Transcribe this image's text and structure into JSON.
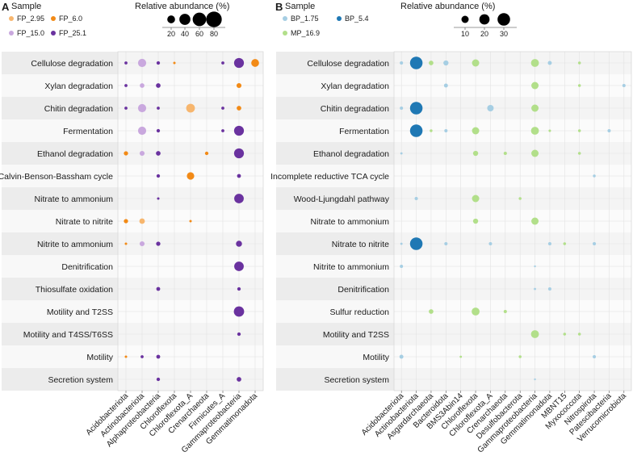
{
  "chart_data": [
    {
      "panel": "A",
      "type": "dot-matrix",
      "legend": {
        "sample_title": "Sample",
        "size_title": "Relative abundance (%)",
        "samples": [
          {
            "name": "FP_2.95",
            "color": "#f7b66e"
          },
          {
            "name": "FP_6.0",
            "color": "#f28a16"
          },
          {
            "name": "FP_15.0",
            "color": "#c9a8de"
          },
          {
            "name": "FP_25.1",
            "color": "#6a329f"
          }
        ],
        "size_ticks": [
          20,
          40,
          60,
          80
        ]
      },
      "categories": [
        "Acidobacteriota",
        "Actinobacteriota",
        "Alphaproteobacteria",
        "Chloroflexota",
        "Chloroflexota_A",
        "Crenarchaeota",
        "Firmicutes_A",
        "Gammaproteobacteria",
        "Gemmatimonadota"
      ],
      "pathways": [
        "Cellulose degradation",
        "Xylan degradation",
        "Chitin degradation",
        "Fermentation",
        "Ethanol degradation",
        "Calvin-Benson-Bassham cycle",
        "Nitrate to ammonium",
        "Nitrate to nitrite",
        "Nitrite to ammonium",
        "Denitrification",
        "Thiosulfate oxidation",
        "Motility and T2SS",
        "Motility and T4SS/T6SS",
        "Motility",
        "Secretion system"
      ],
      "points": [
        {
          "row": 0,
          "col": 0,
          "sample": "FP_25.1",
          "value": 3
        },
        {
          "row": 0,
          "col": 1,
          "sample": "FP_15.0",
          "value": 22
        },
        {
          "row": 0,
          "col": 2,
          "sample": "FP_25.1",
          "value": 4
        },
        {
          "row": 0,
          "col": 3,
          "sample": "FP_6.0",
          "value": 2
        },
        {
          "row": 0,
          "col": 6,
          "sample": "FP_25.1",
          "value": 3
        },
        {
          "row": 0,
          "col": 7,
          "sample": "FP_25.1",
          "value": 32
        },
        {
          "row": 0,
          "col": 8,
          "sample": "FP_6.0",
          "value": 20
        },
        {
          "row": 1,
          "col": 0,
          "sample": "FP_25.1",
          "value": 3
        },
        {
          "row": 1,
          "col": 1,
          "sample": "FP_15.0",
          "value": 7
        },
        {
          "row": 1,
          "col": 2,
          "sample": "FP_25.1",
          "value": 7
        },
        {
          "row": 1,
          "col": 7,
          "sample": "FP_6.0",
          "value": 8
        },
        {
          "row": 2,
          "col": 0,
          "sample": "FP_25.1",
          "value": 3
        },
        {
          "row": 2,
          "col": 1,
          "sample": "FP_15.0",
          "value": 22
        },
        {
          "row": 2,
          "col": 2,
          "sample": "FP_25.1",
          "value": 3
        },
        {
          "row": 2,
          "col": 4,
          "sample": "FP_2.95",
          "value": 25
        },
        {
          "row": 2,
          "col": 6,
          "sample": "FP_25.1",
          "value": 3
        },
        {
          "row": 2,
          "col": 7,
          "sample": "FP_6.0",
          "value": 7
        },
        {
          "row": 3,
          "col": 1,
          "sample": "FP_15.0",
          "value": 22
        },
        {
          "row": 3,
          "col": 2,
          "sample": "FP_25.1",
          "value": 4
        },
        {
          "row": 3,
          "col": 6,
          "sample": "FP_25.1",
          "value": 3
        },
        {
          "row": 3,
          "col": 7,
          "sample": "FP_25.1",
          "value": 32
        },
        {
          "row": 4,
          "col": 0,
          "sample": "FP_6.0",
          "value": 6
        },
        {
          "row": 4,
          "col": 1,
          "sample": "FP_15.0",
          "value": 8
        },
        {
          "row": 4,
          "col": 2,
          "sample": "FP_25.1",
          "value": 7
        },
        {
          "row": 4,
          "col": 5,
          "sample": "FP_6.0",
          "value": 4
        },
        {
          "row": 4,
          "col": 7,
          "sample": "FP_25.1",
          "value": 32
        },
        {
          "row": 5,
          "col": 2,
          "sample": "FP_25.1",
          "value": 4
        },
        {
          "row": 5,
          "col": 4,
          "sample": "FP_6.0",
          "value": 18
        },
        {
          "row": 5,
          "col": 7,
          "sample": "FP_25.1",
          "value": 5
        },
        {
          "row": 6,
          "col": 2,
          "sample": "FP_25.1",
          "value": 2
        },
        {
          "row": 6,
          "col": 7,
          "sample": "FP_25.1",
          "value": 30
        },
        {
          "row": 7,
          "col": 0,
          "sample": "FP_6.0",
          "value": 6
        },
        {
          "row": 7,
          "col": 1,
          "sample": "FP_2.95",
          "value": 10
        },
        {
          "row": 7,
          "col": 4,
          "sample": "FP_6.0",
          "value": 2
        },
        {
          "row": 8,
          "col": 0,
          "sample": "FP_6.0",
          "value": 2
        },
        {
          "row": 8,
          "col": 1,
          "sample": "FP_15.0",
          "value": 8
        },
        {
          "row": 8,
          "col": 2,
          "sample": "FP_25.1",
          "value": 6
        },
        {
          "row": 8,
          "col": 7,
          "sample": "FP_25.1",
          "value": 12
        },
        {
          "row": 9,
          "col": 7,
          "sample": "FP_25.1",
          "value": 30
        },
        {
          "row": 10,
          "col": 2,
          "sample": "FP_25.1",
          "value": 5
        },
        {
          "row": 10,
          "col": 7,
          "sample": "FP_25.1",
          "value": 4
        },
        {
          "row": 11,
          "col": 7,
          "sample": "FP_25.1",
          "value": 35
        },
        {
          "row": 12,
          "col": 7,
          "sample": "FP_25.1",
          "value": 4
        },
        {
          "row": 13,
          "col": 0,
          "sample": "FP_6.0",
          "value": 2
        },
        {
          "row": 13,
          "col": 1,
          "sample": "FP_25.1",
          "value": 3
        },
        {
          "row": 13,
          "col": 2,
          "sample": "FP_25.1",
          "value": 5
        },
        {
          "row": 14,
          "col": 2,
          "sample": "FP_25.1",
          "value": 4
        },
        {
          "row": 14,
          "col": 7,
          "sample": "FP_25.1",
          "value": 7
        }
      ]
    },
    {
      "panel": "B",
      "type": "dot-matrix",
      "legend": {
        "sample_title": "Sample",
        "size_title": "Relative abundance (%)",
        "samples": [
          {
            "name": "BP_1.75",
            "color": "#a6cee3"
          },
          {
            "name": "BP_5.4",
            "color": "#1f78b4"
          },
          {
            "name": "MP_16.9",
            "color": "#b2df8a"
          }
        ],
        "size_ticks": [
          10,
          20,
          30
        ]
      },
      "categories": [
        "Acidobacteriota",
        "Actinobacteriota",
        "Asgardarchaeota",
        "Bacteroidota",
        "BMS3Abin14",
        "Chloroflexota",
        "Chloroflexota_A",
        "Crenarchaeota",
        "Desulfobacterota",
        "Gammaproteobacteria",
        "Gemmatimonadota",
        "MBNT15",
        "Myxococcota",
        "Nitrospirota",
        "Patescibacteria",
        "Verrucomicrobiota"
      ],
      "pathways": [
        "Cellulose degradation",
        "Xylan degradation",
        "Chitin degradation",
        "Fermentation",
        "Ethanol degradation",
        "Incomplete reductive TCA cycle",
        "Wood-Ljungdahl pathway",
        "Nitrate to ammonium",
        "Nitrate to nitrite",
        "Nitrite to ammonium",
        "Denitrification",
        "Sulfur reduction",
        "Motility and T2SS",
        "Motility",
        "Secretion system"
      ],
      "points": [
        {
          "row": 0,
          "col": 0,
          "sample": "BP_1.75",
          "value": 2
        },
        {
          "row": 0,
          "col": 1,
          "sample": "BP_5.4",
          "value": 30
        },
        {
          "row": 0,
          "col": 2,
          "sample": "MP_16.9",
          "value": 4
        },
        {
          "row": 0,
          "col": 3,
          "sample": "BP_1.75",
          "value": 5
        },
        {
          "row": 0,
          "col": 5,
          "sample": "MP_16.9",
          "value": 10
        },
        {
          "row": 0,
          "col": 9,
          "sample": "MP_16.9",
          "value": 12
        },
        {
          "row": 0,
          "col": 10,
          "sample": "BP_1.75",
          "value": 3
        },
        {
          "row": 0,
          "col": 12,
          "sample": "MP_16.9",
          "value": 1.5
        },
        {
          "row": 1,
          "col": 3,
          "sample": "BP_1.75",
          "value": 3
        },
        {
          "row": 1,
          "col": 9,
          "sample": "MP_16.9",
          "value": 10
        },
        {
          "row": 1,
          "col": 12,
          "sample": "MP_16.9",
          "value": 1.5
        },
        {
          "row": 1,
          "col": 15,
          "sample": "BP_1.75",
          "value": 2
        },
        {
          "row": 2,
          "col": 0,
          "sample": "BP_1.75",
          "value": 2
        },
        {
          "row": 2,
          "col": 1,
          "sample": "BP_5.4",
          "value": 30
        },
        {
          "row": 2,
          "col": 6,
          "sample": "BP_1.75",
          "value": 8
        },
        {
          "row": 2,
          "col": 9,
          "sample": "MP_16.9",
          "value": 10
        },
        {
          "row": 3,
          "col": 1,
          "sample": "BP_5.4",
          "value": 30
        },
        {
          "row": 3,
          "col": 2,
          "sample": "MP_16.9",
          "value": 1.5
        },
        {
          "row": 3,
          "col": 3,
          "sample": "BP_1.75",
          "value": 2
        },
        {
          "row": 3,
          "col": 5,
          "sample": "MP_16.9",
          "value": 10
        },
        {
          "row": 3,
          "col": 9,
          "sample": "MP_16.9",
          "value": 12
        },
        {
          "row": 3,
          "col": 10,
          "sample": "MP_16.9",
          "value": 1.2
        },
        {
          "row": 3,
          "col": 12,
          "sample": "MP_16.9",
          "value": 1.5
        },
        {
          "row": 3,
          "col": 14,
          "sample": "BP_1.75",
          "value": 2
        },
        {
          "row": 4,
          "col": 0,
          "sample": "BP_1.75",
          "value": 1
        },
        {
          "row": 4,
          "col": 5,
          "sample": "MP_16.9",
          "value": 5
        },
        {
          "row": 4,
          "col": 7,
          "sample": "MP_16.9",
          "value": 2
        },
        {
          "row": 4,
          "col": 9,
          "sample": "MP_16.9",
          "value": 10
        },
        {
          "row": 4,
          "col": 12,
          "sample": "MP_16.9",
          "value": 1.5
        },
        {
          "row": 5,
          "col": 13,
          "sample": "BP_1.75",
          "value": 1.5
        },
        {
          "row": 6,
          "col": 1,
          "sample": "BP_1.75",
          "value": 2
        },
        {
          "row": 6,
          "col": 5,
          "sample": "MP_16.9",
          "value": 10
        },
        {
          "row": 6,
          "col": 8,
          "sample": "MP_16.9",
          "value": 1.5
        },
        {
          "row": 7,
          "col": 5,
          "sample": "MP_16.9",
          "value": 5
        },
        {
          "row": 7,
          "col": 9,
          "sample": "MP_16.9",
          "value": 10
        },
        {
          "row": 8,
          "col": 0,
          "sample": "BP_1.75",
          "value": 1
        },
        {
          "row": 8,
          "col": 1,
          "sample": "BP_5.4",
          "value": 30
        },
        {
          "row": 8,
          "col": 3,
          "sample": "BP_1.75",
          "value": 2
        },
        {
          "row": 8,
          "col": 6,
          "sample": "BP_1.75",
          "value": 2
        },
        {
          "row": 8,
          "col": 10,
          "sample": "BP_1.75",
          "value": 2
        },
        {
          "row": 8,
          "col": 11,
          "sample": "MP_16.9",
          "value": 1.5
        },
        {
          "row": 8,
          "col": 13,
          "sample": "BP_1.75",
          "value": 2
        },
        {
          "row": 9,
          "col": 0,
          "sample": "BP_1.75",
          "value": 2
        },
        {
          "row": 9,
          "col": 9,
          "sample": "BP_1.75",
          "value": 0.5
        },
        {
          "row": 10,
          "col": 9,
          "sample": "BP_1.75",
          "value": 1
        },
        {
          "row": 10,
          "col": 10,
          "sample": "BP_1.75",
          "value": 2
        },
        {
          "row": 11,
          "col": 2,
          "sample": "MP_16.9",
          "value": 4
        },
        {
          "row": 11,
          "col": 5,
          "sample": "MP_16.9",
          "value": 12
        },
        {
          "row": 11,
          "col": 7,
          "sample": "MP_16.9",
          "value": 2
        },
        {
          "row": 12,
          "col": 9,
          "sample": "MP_16.9",
          "value": 12
        },
        {
          "row": 12,
          "col": 11,
          "sample": "MP_16.9",
          "value": 1.5
        },
        {
          "row": 12,
          "col": 12,
          "sample": "MP_16.9",
          "value": 1.5
        },
        {
          "row": 13,
          "col": 0,
          "sample": "BP_1.75",
          "value": 3
        },
        {
          "row": 13,
          "col": 4,
          "sample": "MP_16.9",
          "value": 1
        },
        {
          "row": 13,
          "col": 8,
          "sample": "MP_16.9",
          "value": 1.5
        },
        {
          "row": 13,
          "col": 13,
          "sample": "BP_1.75",
          "value": 2
        },
        {
          "row": 14,
          "col": 9,
          "sample": "BP_1.75",
          "value": 0.5
        }
      ]
    }
  ]
}
